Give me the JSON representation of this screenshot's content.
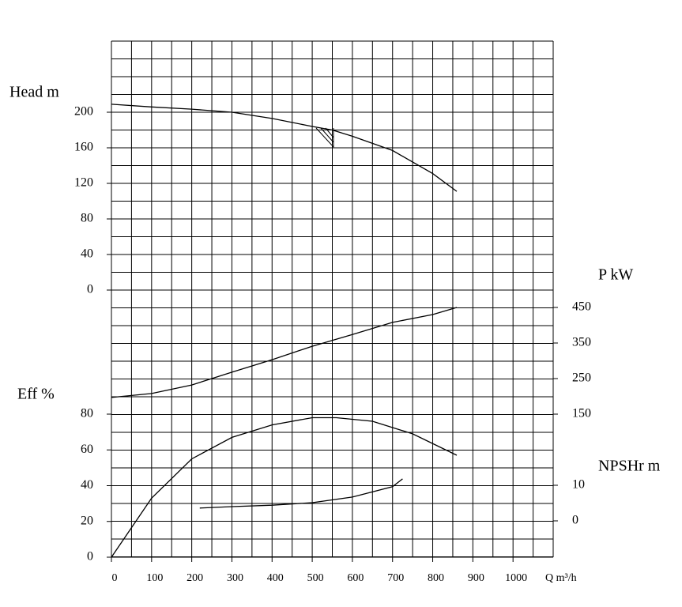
{
  "chart_data": {
    "type": "line",
    "x_label": "Q m³/h",
    "xlim": [
      0,
      1100
    ],
    "xticks": [
      0,
      100,
      200,
      300,
      400,
      500,
      600,
      700,
      800,
      900,
      1000
    ],
    "grid": true,
    "axes": [
      {
        "label": "Head m",
        "side": "left",
        "ylim": [
          0,
          200
        ],
        "yticks": [
          0,
          40,
          80,
          120,
          160,
          200
        ]
      },
      {
        "label": "P kW",
        "side": "right",
        "ylim": [
          150,
          450
        ],
        "yticks": [
          150,
          250,
          350,
          450
        ]
      },
      {
        "label": "Eff %",
        "side": "left",
        "ylim": [
          0,
          80
        ],
        "yticks": [
          0,
          20,
          40,
          60,
          80
        ]
      },
      {
        "label": "NPSHr m",
        "side": "right",
        "ylim": [
          0,
          10
        ],
        "yticks": [
          0,
          10
        ]
      }
    ],
    "series": [
      {
        "axis": 0,
        "color": "#000000",
        "x": [
          0,
          100,
          200,
          300,
          400,
          500,
          550,
          600,
          700,
          800,
          860
        ],
        "values": [
          209,
          206,
          203.5,
          200,
          193,
          184,
          180,
          173,
          157,
          131,
          111
        ]
      },
      {
        "axis": 1,
        "color": "#000000",
        "x": [
          0,
          100,
          200,
          300,
          400,
          500,
          600,
          700,
          800,
          860
        ],
        "values": [
          197,
          208,
          232,
          268,
          303,
          341,
          374,
          408,
          430,
          450
        ]
      },
      {
        "axis": 2,
        "color": "#000000",
        "x": [
          0,
          100,
          200,
          300,
          400,
          500,
          560,
          650,
          750,
          860
        ],
        "values": [
          0,
          33,
          55,
          67,
          74,
          78,
          78,
          76,
          69,
          57
        ]
      },
      {
        "axis": 3,
        "color": "#000000",
        "x": [
          220,
          300,
          400,
          500,
          600,
          700,
          725
        ],
        "values": [
          3.6,
          4,
          4.4,
          5.1,
          6.7,
          9.6,
          11.8
        ]
      }
    ]
  }
}
